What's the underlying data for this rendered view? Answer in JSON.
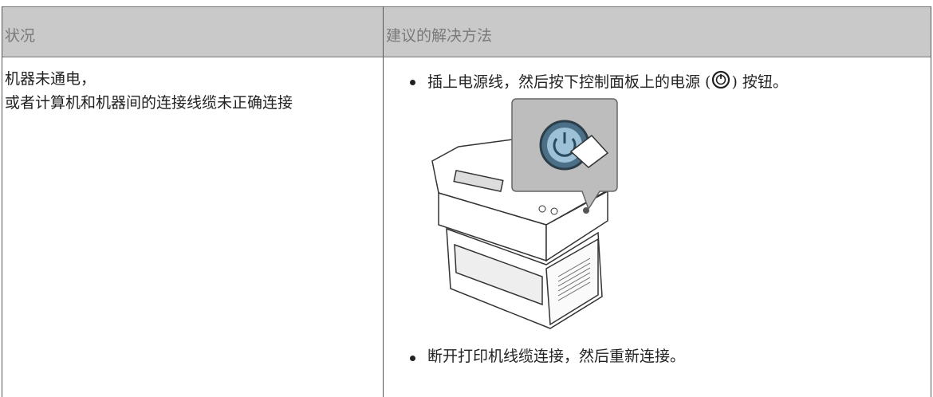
{
  "table": {
    "header": [
      "状况",
      "建议的解决方法"
    ],
    "rows": [
      [
        [
          "机器未通电，",
          "或者计算机和机器间的连接线缆未正确连接"
        ],
        {
          "bullets": [
            {
              "text_before": "插上电源线，然后按下控制面板上的电源 (",
              "text_after": ") 按钮。"
            },
            {
              "text_before": "断开打印机线缆连接，然后重新连接。"
            }
          ]
        }
      ]
    ]
  }
}
